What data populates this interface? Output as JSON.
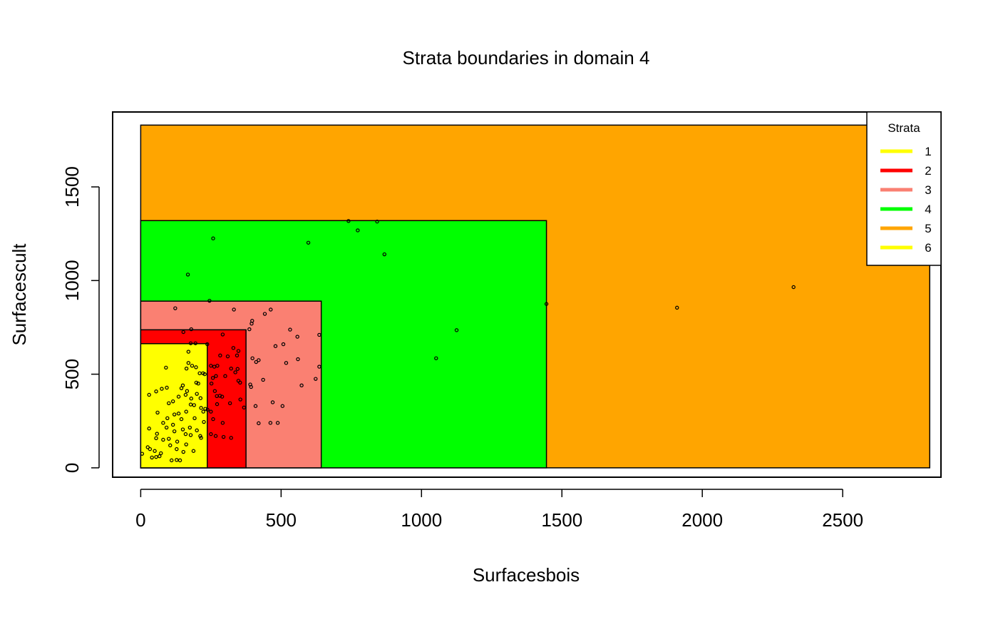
{
  "chart_data": {
    "type": "scatter",
    "title": "Strata boundaries in domain 4",
    "xlabel": "Surfacesbois",
    "ylabel": "Surfacescult",
    "xlim": [
      -100,
      2850
    ],
    "ylim": [
      -50,
      1900
    ],
    "x_ticks": [
      0,
      500,
      1000,
      1500,
      2000,
      2500
    ],
    "x_tick_labels": [
      "0",
      "500",
      "1000",
      "1500",
      "2000",
      "2500"
    ],
    "y_ticks": [
      0,
      500,
      1000,
      1500
    ],
    "y_tick_labels": [
      "0",
      "500",
      "1000",
      "1500"
    ],
    "grid": false,
    "legend": {
      "title": "Strata",
      "placement": "top-right",
      "entries": [
        {
          "label": "1",
          "color": "#FFFF00"
        },
        {
          "label": "2",
          "color": "#FF0000"
        },
        {
          "label": "3",
          "color": "#FA8072"
        },
        {
          "label": "4",
          "color": "#00FF00"
        },
        {
          "label": "5",
          "color": "#FFA500"
        },
        {
          "label": "6",
          "color": "#FFFF00"
        }
      ]
    },
    "strata_boxes": [
      {
        "stratum": "5",
        "color": "#FFA500",
        "x_min": 0,
        "x_max": 2810,
        "y_min": 0,
        "y_max": 1830
      },
      {
        "stratum": "4",
        "color": "#00FF00",
        "x_min": 0,
        "x_max": 1445,
        "y_min": 0,
        "y_max": 1320
      },
      {
        "stratum": "3",
        "color": "#FA8072",
        "x_min": 0,
        "x_max": 643,
        "y_min": 0,
        "y_max": 890
      },
      {
        "stratum": "2",
        "color": "#FF0000",
        "x_min": 0,
        "x_max": 375,
        "y_min": 0,
        "y_max": 737
      },
      {
        "stratum": "1",
        "color": "#FFFF00",
        "x_min": 0,
        "x_max": 237,
        "y_min": 0,
        "y_max": 663
      }
    ],
    "points": [
      [
        2325,
        965
      ],
      [
        1910,
        855
      ],
      [
        1445,
        875
      ],
      [
        1125,
        735
      ],
      [
        1052,
        585
      ],
      [
        740,
        1318
      ],
      [
        842,
        1315
      ],
      [
        773,
        1268
      ],
      [
        868,
        1140
      ],
      [
        597,
        1202
      ],
      [
        258,
        1225
      ],
      [
        168,
        1032
      ],
      [
        123,
        852
      ],
      [
        245,
        892
      ],
      [
        332,
        845
      ],
      [
        463,
        845
      ],
      [
        442,
        822
      ],
      [
        397,
        785
      ],
      [
        395,
        770
      ],
      [
        387,
        740
      ],
      [
        636,
        710
      ],
      [
        532,
        738
      ],
      [
        558,
        700
      ],
      [
        508,
        660
      ],
      [
        480,
        650
      ],
      [
        518,
        560
      ],
      [
        560,
        580
      ],
      [
        398,
        585
      ],
      [
        420,
        575
      ],
      [
        411,
        565
      ],
      [
        636,
        540
      ],
      [
        623,
        475
      ],
      [
        573,
        440
      ],
      [
        436,
        470
      ],
      [
        390,
        445
      ],
      [
        393,
        432
      ],
      [
        409,
        330
      ],
      [
        368,
        322
      ],
      [
        470,
        350
      ],
      [
        505,
        330
      ],
      [
        420,
        238
      ],
      [
        462,
        240
      ],
      [
        488,
        240
      ],
      [
        292,
        712
      ],
      [
        330,
        640
      ],
      [
        348,
        624
      ],
      [
        343,
        600
      ],
      [
        310,
        595
      ],
      [
        283,
        600
      ],
      [
        273,
        545
      ],
      [
        262,
        540
      ],
      [
        250,
        545
      ],
      [
        322,
        530
      ],
      [
        345,
        528
      ],
      [
        337,
        510
      ],
      [
        301,
        490
      ],
      [
        268,
        490
      ],
      [
        257,
        480
      ],
      [
        348,
        465
      ],
      [
        354,
        455
      ],
      [
        252,
        450
      ],
      [
        264,
        410
      ],
      [
        282,
        385
      ],
      [
        271,
        383
      ],
      [
        290,
        380
      ],
      [
        355,
        365
      ],
      [
        318,
        345
      ],
      [
        272,
        340
      ],
      [
        250,
        300
      ],
      [
        258,
        260
      ],
      [
        292,
        240
      ],
      [
        250,
        180
      ],
      [
        267,
        170
      ],
      [
        295,
        165
      ],
      [
        322,
        160
      ],
      [
        237,
        660
      ],
      [
        180,
        740
      ],
      [
        152,
        725
      ],
      [
        195,
        665
      ],
      [
        178,
        665
      ],
      [
        170,
        620
      ],
      [
        170,
        560
      ],
      [
        183,
        545
      ],
      [
        197,
        537
      ],
      [
        163,
        530
      ],
      [
        90,
        535
      ],
      [
        222,
        505
      ],
      [
        228,
        500
      ],
      [
        210,
        505
      ],
      [
        198,
        455
      ],
      [
        205,
        450
      ],
      [
        150,
        440
      ],
      [
        145,
        425
      ],
      [
        93,
        428
      ],
      [
        75,
        422
      ],
      [
        55,
        408
      ],
      [
        30,
        390
      ],
      [
        200,
        395
      ],
      [
        160,
        390
      ],
      [
        165,
        410
      ],
      [
        180,
        370
      ],
      [
        213,
        372
      ],
      [
        135,
        380
      ],
      [
        115,
        355
      ],
      [
        100,
        345
      ],
      [
        190,
        335
      ],
      [
        178,
        338
      ],
      [
        215,
        320
      ],
      [
        230,
        315
      ],
      [
        238,
        310
      ],
      [
        223,
        300
      ],
      [
        162,
        300
      ],
      [
        135,
        290
      ],
      [
        120,
        285
      ],
      [
        60,
        295
      ],
      [
        95,
        265
      ],
      [
        192,
        265
      ],
      [
        145,
        260
      ],
      [
        225,
        245
      ],
      [
        80,
        240
      ],
      [
        115,
        230
      ],
      [
        92,
        215
      ],
      [
        30,
        210
      ],
      [
        175,
        215
      ],
      [
        150,
        205
      ],
      [
        200,
        200
      ],
      [
        120,
        195
      ],
      [
        58,
        182
      ],
      [
        160,
        180
      ],
      [
        178,
        175
      ],
      [
        212,
        170
      ],
      [
        215,
        160
      ],
      [
        55,
        158
      ],
      [
        100,
        155
      ],
      [
        80,
        150
      ],
      [
        130,
        140
      ],
      [
        162,
        125
      ],
      [
        105,
        120
      ],
      [
        25,
        110
      ],
      [
        33,
        100
      ],
      [
        128,
        100
      ],
      [
        152,
        85
      ],
      [
        188,
        90
      ],
      [
        50,
        90
      ],
      [
        72,
        78
      ],
      [
        5,
        75
      ],
      [
        40,
        55
      ],
      [
        55,
        58
      ],
      [
        67,
        62
      ],
      [
        110,
        40
      ],
      [
        128,
        42
      ],
      [
        140,
        40
      ]
    ]
  }
}
